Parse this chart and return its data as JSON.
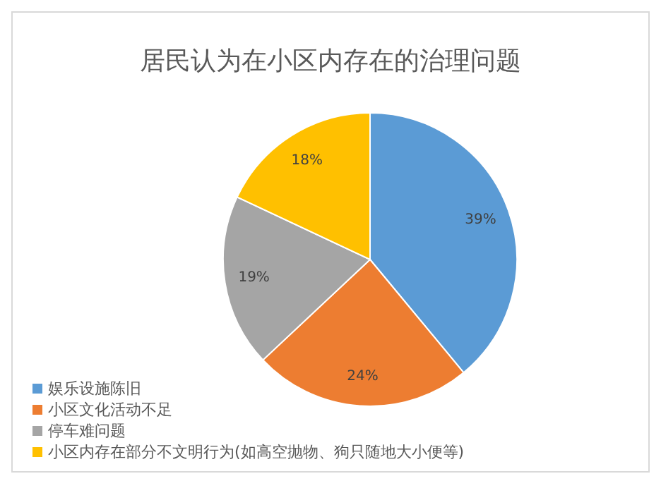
{
  "chart_data": {
    "type": "pie",
    "title": "居民认为在小区内存在的治理问题",
    "categories": [
      "娱乐设施陈旧",
      "小区文化活动不足",
      "停车难问题",
      "小区内存在部分不文明行为(如高空抛物、狗只随地大小便等)"
    ],
    "values": [
      39,
      24,
      19,
      18
    ],
    "colors": [
      "#5b9bd5",
      "#ed7d31",
      "#a5a5a5",
      "#ffc000"
    ],
    "value_labels": [
      "39%",
      "24%",
      "19%",
      "18%"
    ],
    "legend": "bottom left"
  }
}
